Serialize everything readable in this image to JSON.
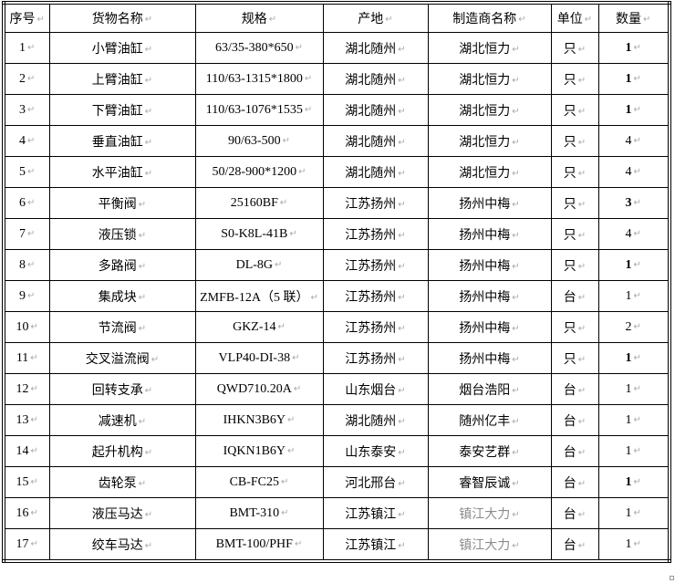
{
  "marks": {
    "paragraph": "↵"
  },
  "colors": {
    "border": "#000000",
    "text": "#000000",
    "paragraph_mark": "#a9a9a9",
    "muted_text": "#8c8c8c",
    "background": "#ffffff"
  },
  "table": {
    "headers": [
      {
        "key": "no",
        "label": "序号"
      },
      {
        "key": "name",
        "label": "货物名称"
      },
      {
        "key": "spec",
        "label": "规格"
      },
      {
        "key": "origin",
        "label": "产地"
      },
      {
        "key": "maker",
        "label": "制造商名称"
      },
      {
        "key": "unit",
        "label": "单位"
      },
      {
        "key": "qty",
        "label": "数量"
      }
    ],
    "rows": [
      {
        "no": "1",
        "name": "小臂油缸",
        "spec": "63/35-380*650",
        "origin": "湖北随州",
        "maker": "湖北恒力",
        "unit": "只",
        "qty": "1",
        "qty_bold": true,
        "maker_muted": false
      },
      {
        "no": "2",
        "name": "上臂油缸",
        "spec": "110/63-1315*1800",
        "origin": "湖北随州",
        "maker": "湖北恒力",
        "unit": "只",
        "qty": "1",
        "qty_bold": true,
        "maker_muted": false
      },
      {
        "no": "3",
        "name": "下臂油缸",
        "spec": "110/63-1076*1535",
        "origin": "湖北随州",
        "maker": "湖北恒力",
        "unit": "只",
        "qty": "1",
        "qty_bold": true,
        "maker_muted": false
      },
      {
        "no": "4",
        "name": "垂直油缸",
        "spec": "90/63-500",
        "origin": "湖北随州",
        "maker": "湖北恒力",
        "unit": "只",
        "qty": "4",
        "qty_bold": false,
        "maker_muted": false
      },
      {
        "no": "5",
        "name": "水平油缸",
        "spec": "50/28-900*1200",
        "origin": "湖北随州",
        "maker": "湖北恒力",
        "unit": "只",
        "qty": "4",
        "qty_bold": false,
        "maker_muted": false
      },
      {
        "no": "6",
        "name": "平衡阀",
        "spec": "25160BF",
        "origin": "江苏扬州",
        "maker": "扬州中梅",
        "unit": "只",
        "qty": "3",
        "qty_bold": true,
        "maker_muted": false
      },
      {
        "no": "7",
        "name": "液压锁",
        "spec": "S0-K8L-41B",
        "origin": "江苏扬州",
        "maker": "扬州中梅",
        "unit": "只",
        "qty": "4",
        "qty_bold": false,
        "maker_muted": false
      },
      {
        "no": "8",
        "name": "多路阀",
        "spec": "DL-8G",
        "origin": "江苏扬州",
        "maker": "扬州中梅",
        "unit": "只",
        "qty": "1",
        "qty_bold": true,
        "maker_muted": false
      },
      {
        "no": "9",
        "name": "集成块",
        "spec": "ZMFB-12A（5 联）",
        "origin": "江苏扬州",
        "maker": "扬州中梅",
        "unit": "台",
        "qty": "1",
        "qty_bold": false,
        "maker_muted": false
      },
      {
        "no": "10",
        "name": "节流阀",
        "spec": "GKZ-14",
        "origin": "江苏扬州",
        "maker": "扬州中梅",
        "unit": "只",
        "qty": "2",
        "qty_bold": false,
        "maker_muted": false
      },
      {
        "no": "11",
        "name": "交叉溢流阀",
        "spec": "VLP40-DI-38",
        "origin": "江苏扬州",
        "maker": "扬州中梅",
        "unit": "只",
        "qty": "1",
        "qty_bold": true,
        "maker_muted": false
      },
      {
        "no": "12",
        "name": "回转支承",
        "spec": "QWD710.20A",
        "origin": "山东烟台",
        "maker": "烟台浩阳",
        "unit": "台",
        "qty": "1",
        "qty_bold": false,
        "maker_muted": false
      },
      {
        "no": "13",
        "name": "减速机",
        "spec": "IHKN3B6Y",
        "origin": "湖北随州",
        "maker": "随州亿丰",
        "unit": "台",
        "qty": "1",
        "qty_bold": false,
        "maker_muted": false
      },
      {
        "no": "14",
        "name": "起升机构",
        "spec": "IQKN1B6Y",
        "origin": "山东泰安",
        "maker": "泰安艺群",
        "unit": "台",
        "qty": "1",
        "qty_bold": false,
        "maker_muted": false
      },
      {
        "no": "15",
        "name": "齿轮泵",
        "spec": "CB-FC25",
        "origin": "河北邢台",
        "maker": "睿智辰诚",
        "unit": "台",
        "qty": "1",
        "qty_bold": true,
        "maker_muted": false
      },
      {
        "no": "16",
        "name": "液压马达",
        "spec": "BMT-310",
        "origin": "江苏镇江",
        "maker": "镇江大力",
        "unit": "台",
        "qty": "1",
        "qty_bold": false,
        "maker_muted": true
      },
      {
        "no": "17",
        "name": "绞车马达",
        "spec": "BMT-100/PHF",
        "origin": "江苏镇江",
        "maker": "镇江大力",
        "unit": "台",
        "qty": "1",
        "qty_bold": false,
        "maker_muted": true
      }
    ]
  }
}
